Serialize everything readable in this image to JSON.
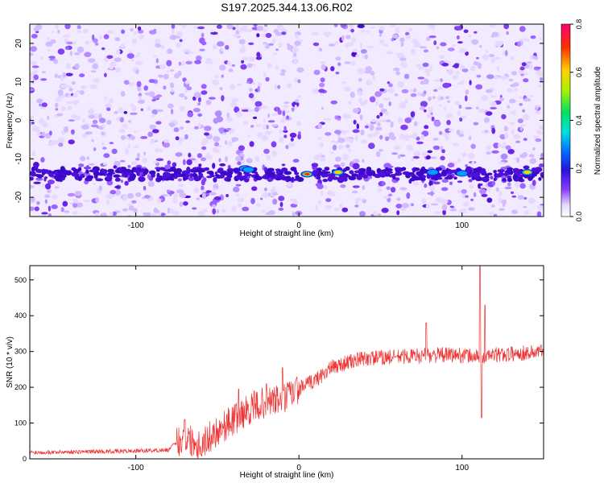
{
  "title": "S197.2025.344.13.06.R02",
  "chart_data": [
    {
      "type": "heatmap",
      "xlabel": "Height of straight line (km)",
      "ylabel": "Frequency (Hz)",
      "xlim": [
        -165,
        150
      ],
      "ylim": [
        -25,
        25
      ],
      "x_ticks": [
        -100,
        0,
        100
      ],
      "y_ticks": [
        -20,
        -10,
        0,
        10,
        20
      ],
      "colorbar": {
        "label": "Normalized spectral amplitude",
        "range": [
          0.0,
          0.8
        ],
        "ticks": [
          "0.0",
          "0.2",
          "0.4",
          "0.6",
          "0.8"
        ]
      },
      "band_frequency_hz": -14,
      "gap_km": [
        2,
        9
      ],
      "peaks": [
        {
          "x": -33,
          "y": -12.5,
          "value": 0.35
        },
        {
          "x": -31,
          "y": -12.8,
          "value": 0.3
        },
        {
          "x": 5,
          "y": -14,
          "value": 0.8
        },
        {
          "x": 24,
          "y": -13.5,
          "value": 0.7
        },
        {
          "x": 82,
          "y": -13.5,
          "value": 0.35
        },
        {
          "x": 100,
          "y": -13.8,
          "value": 0.25
        },
        {
          "x": 140,
          "y": -13.5,
          "value": 0.6
        }
      ]
    },
    {
      "type": "line",
      "xlabel": "Height of straight line (km)",
      "ylabel": "SNR (10 * v/v)",
      "xlim": [
        -165,
        150
      ],
      "ylim": [
        0,
        540
      ],
      "x_ticks": [
        -100,
        0,
        100
      ],
      "y_ticks": [
        0,
        100,
        200,
        300,
        400,
        500
      ],
      "color": "#ee3333",
      "trend": {
        "x": [
          -165,
          -130,
          -100,
          -80,
          -74,
          -70,
          -60,
          -50,
          -40,
          -30,
          -20,
          -10,
          0,
          10,
          20,
          30,
          40,
          60,
          80,
          100,
          110,
          120,
          135,
          150
        ],
        "y": [
          18,
          20,
          22,
          25,
          50,
          60,
          40,
          80,
          110,
          140,
          160,
          165,
          195,
          220,
          255,
          270,
          280,
          285,
          290,
          290,
          285,
          290,
          295,
          300
        ]
      },
      "spikes": [
        {
          "x": -70,
          "y": 110
        },
        {
          "x": -37,
          "y": 195
        },
        {
          "x": -20,
          "y": 210
        },
        {
          "x": -10,
          "y": 255
        },
        {
          "x": 78,
          "y": 380
        },
        {
          "x": 111,
          "y": 540
        },
        {
          "x": 112,
          "y": 115
        },
        {
          "x": 114,
          "y": 430
        }
      ]
    }
  ]
}
